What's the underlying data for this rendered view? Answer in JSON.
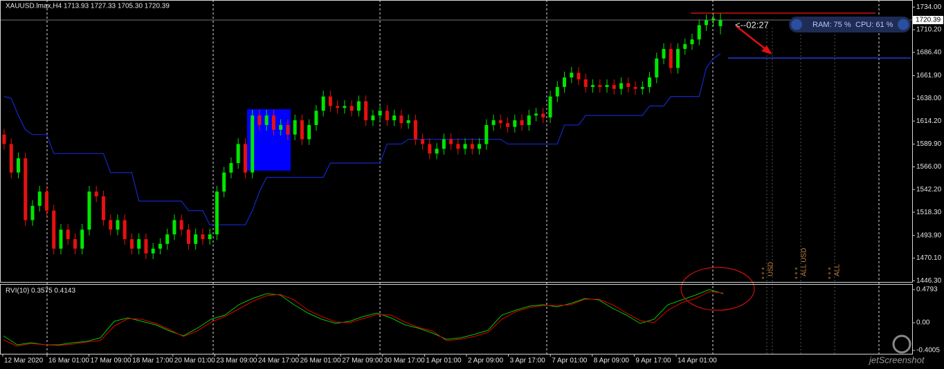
{
  "header": {
    "symbol": "XAUUSD.lmax,H4",
    "ohlc": "1713.93 1727.33 1705.30 1720.39",
    "timer": "<--02:27",
    "ram": "RAM: 75 %",
    "cpu": "CPU: 61 %",
    "watermark": "jetScreenshot"
  },
  "events": [
    {
      "stars": "* * *",
      "label": "USD"
    },
    {
      "stars": "* * *",
      "label": "ALL USD"
    },
    {
      "stars": "* * *",
      "label": "ALL"
    }
  ],
  "time_labels": [
    "12 Mar 2020",
    "16 Mar 01:00",
    "17 Mar 09:00",
    "18 Mar 17:00",
    "20 Mar 01:00",
    "23 Mar 09:00",
    "24 Mar 17:00",
    "26 Mar 01:00",
    "27 Mar 09:00",
    "30 Mar 17:00",
    "1 Apr 01:00",
    "2 Apr 09:00",
    "3 Apr 17:00",
    "7 Apr 01:00",
    "8 Apr 09:00",
    "9 Apr 17:00",
    "14 Apr 01:00"
  ],
  "chart_data": [
    {
      "type": "candlestick",
      "up_color": "#00e600",
      "down_color": "#e81010",
      "ylim": [
        1445,
        1740
      ],
      "yticks": [
        {
          "value": 1734,
          "label": "1734.00"
        },
        {
          "value": 1710.2,
          "label": "1710.20"
        },
        {
          "value": 1686.4,
          "label": "1686.40"
        },
        {
          "value": 1661.9,
          "label": "1661.90"
        },
        {
          "value": 1638,
          "label": "1638.00"
        },
        {
          "value": 1614.2,
          "label": "1614.20"
        },
        {
          "value": 1589.9,
          "label": "1589.90"
        },
        {
          "value": 1566,
          "label": "1566.00"
        },
        {
          "value": 1542.2,
          "label": "1542.20"
        },
        {
          "value": 1518.3,
          "label": "1518.30"
        },
        {
          "value": 1493.9,
          "label": "1493.90"
        },
        {
          "value": 1470.1,
          "label": "1470.10"
        },
        {
          "value": 1446.3,
          "label": "1446.30"
        }
      ],
      "open": [
        1600,
        1590,
        1560,
        1575,
        1510,
        1525,
        1540,
        1520,
        1480,
        1500,
        1490,
        1480,
        1500,
        1540,
        1535,
        1510,
        1500,
        1510,
        1490,
        1480,
        1490,
        1475,
        1480,
        1485,
        1495,
        1510,
        1500,
        1485,
        1495,
        1490,
        1495,
        1540,
        1560,
        1570,
        1590,
        1560,
        1620,
        1610,
        1620,
        1605,
        1610,
        1600,
        1615,
        1595,
        1610,
        1625,
        1640,
        1630,
        1628,
        1630,
        1625,
        1635,
        1615,
        1620,
        1625,
        1615,
        1620,
        1612,
        1615,
        1595,
        1590,
        1580,
        1585,
        1595,
        1590,
        1585,
        1590,
        1585,
        1590,
        1610,
        1615,
        1612,
        1608,
        1615,
        1610,
        1620,
        1622,
        1618,
        1640,
        1650,
        1660,
        1665,
        1658,
        1650,
        1652,
        1650,
        1652,
        1648,
        1654,
        1650,
        1648,
        1650,
        1660,
        1680,
        1690,
        1670,
        1690,
        1695,
        1700,
        1715,
        1720,
        1713.93
      ],
      "high": [
        1606,
        1596,
        1581,
        1581,
        1531,
        1546,
        1546,
        1526,
        1506,
        1506,
        1496,
        1506,
        1546,
        1546,
        1541,
        1516,
        1516,
        1516,
        1496,
        1496,
        1496,
        1486,
        1491,
        1501,
        1516,
        1516,
        1506,
        1501,
        1501,
        1501,
        1546,
        1566,
        1576,
        1596,
        1596,
        1626,
        1626,
        1626,
        1626,
        1616,
        1616,
        1621,
        1621,
        1616,
        1631,
        1646,
        1646,
        1636,
        1636,
        1636,
        1641,
        1641,
        1626,
        1631,
        1631,
        1626,
        1626,
        1621,
        1621,
        1601,
        1596,
        1591,
        1601,
        1601,
        1596,
        1596,
        1596,
        1596,
        1616,
        1621,
        1621,
        1618,
        1621,
        1621,
        1626,
        1628,
        1628,
        1646,
        1656,
        1666,
        1671,
        1671,
        1664,
        1658,
        1658,
        1658,
        1658,
        1660,
        1660,
        1656,
        1656,
        1666,
        1686,
        1696,
        1696,
        1696,
        1701,
        1706,
        1721,
        1726,
        1728,
        1727.33
      ],
      "low": [
        1584,
        1554,
        1554,
        1504,
        1504,
        1519,
        1514,
        1474,
        1474,
        1484,
        1474,
        1474,
        1494,
        1529,
        1504,
        1494,
        1494,
        1484,
        1474,
        1474,
        1469,
        1469,
        1474,
        1479,
        1489,
        1494,
        1479,
        1479,
        1484,
        1484,
        1489,
        1534,
        1554,
        1564,
        1554,
        1554,
        1604,
        1604,
        1599,
        1599,
        1594,
        1594,
        1589,
        1589,
        1604,
        1619,
        1624,
        1622,
        1622,
        1619,
        1619,
        1609,
        1609,
        1614,
        1609,
        1609,
        1606,
        1606,
        1589,
        1584,
        1574,
        1574,
        1579,
        1584,
        1579,
        1579,
        1579,
        1579,
        1584,
        1604,
        1606,
        1602,
        1602,
        1604,
        1604,
        1614,
        1612,
        1612,
        1634,
        1644,
        1654,
        1652,
        1644,
        1644,
        1644,
        1644,
        1642,
        1642,
        1644,
        1642,
        1642,
        1644,
        1654,
        1674,
        1664,
        1664,
        1684,
        1689,
        1694,
        1709,
        1714,
        1705.3
      ],
      "close": [
        1590,
        1560,
        1575,
        1510,
        1525,
        1540,
        1520,
        1480,
        1500,
        1490,
        1480,
        1500,
        1540,
        1535,
        1510,
        1500,
        1510,
        1490,
        1480,
        1490,
        1475,
        1480,
        1485,
        1495,
        1510,
        1500,
        1485,
        1495,
        1490,
        1495,
        1540,
        1560,
        1570,
        1590,
        1560,
        1620,
        1610,
        1620,
        1605,
        1610,
        1600,
        1615,
        1595,
        1610,
        1625,
        1640,
        1630,
        1628,
        1630,
        1625,
        1635,
        1615,
        1620,
        1625,
        1615,
        1620,
        1612,
        1615,
        1595,
        1590,
        1580,
        1585,
        1595,
        1590,
        1585,
        1590,
        1585,
        1590,
        1610,
        1615,
        1612,
        1608,
        1615,
        1610,
        1620,
        1622,
        1618,
        1640,
        1650,
        1660,
        1665,
        1658,
        1650,
        1652,
        1650,
        1652,
        1648,
        1654,
        1650,
        1648,
        1650,
        1660,
        1680,
        1690,
        1670,
        1690,
        1695,
        1700,
        1715,
        1720,
        1722,
        1720.39
      ],
      "indicator": {
        "color": "#1428c8",
        "values": [
          1640,
          1638,
          1620,
          1605,
          1600,
          1600,
          1600,
          1580,
          1580,
          1580,
          1580,
          1580,
          1580,
          1580,
          1580,
          1560,
          1560,
          1560,
          1560,
          1530,
          1530,
          1530,
          1530,
          1530,
          1530,
          1530,
          1520,
          1520,
          1520,
          1505,
          1505,
          1505,
          1505,
          1505,
          1505,
          1520,
          1540,
          1555,
          1555,
          1555,
          1555,
          1555,
          1555,
          1555,
          1555,
          1555,
          1570,
          1570,
          1570,
          1570,
          1570,
          1570,
          1570,
          1570,
          1590,
          1590,
          1590,
          1595,
          1595,
          1595,
          1595,
          1595,
          1595,
          1595,
          1595,
          1595,
          1595,
          1595,
          1595,
          1595,
          1595,
          1590,
          1590,
          1590,
          1590,
          1590,
          1590,
          1590,
          1590,
          1610,
          1610,
          1610,
          1620,
          1620,
          1620,
          1620,
          1620,
          1620,
          1620,
          1620,
          1620,
          1630,
          1630,
          1630,
          1640,
          1640,
          1640,
          1640,
          1640,
          1670,
          1680,
          1685
        ]
      }
    },
    {
      "type": "line",
      "title": "RVI(10) 0.3575 0.4143",
      "ylim": [
        -0.45,
        0.55
      ],
      "yticks": [
        0.4793,
        {
          "value": 0,
          "label": "0.00"
        },
        -0.4005
      ],
      "series": [
        {
          "color": "#00c800",
          "values": [
            -0.19,
            -0.32,
            -0.29,
            -0.32,
            -0.32,
            -0.29,
            -0.27,
            -0.22,
            0.02,
            0.07,
            0.02,
            -0.03,
            -0.12,
            -0.19,
            -0.08,
            0.05,
            0.11,
            0.26,
            0.35,
            0.42,
            0.4,
            0.26,
            0.14,
            0.05,
            -0.01,
            0.02,
            0.09,
            0.14,
            0.07,
            -0.03,
            -0.08,
            -0.15,
            -0.24,
            -0.22,
            -0.17,
            -0.11,
            0.11,
            0.18,
            0.24,
            0.26,
            0.23,
            0.28,
            0.35,
            0.33,
            0.21,
            0.11,
            -0.01,
            0.05,
            0.26,
            0.33,
            0.4,
            0.48,
            0.42
          ]
        },
        {
          "color": "#e00000",
          "values": [
            -0.25,
            -0.34,
            -0.3,
            -0.32,
            -0.33,
            -0.31,
            -0.28,
            -0.26,
            -0.05,
            0.06,
            0.05,
            -0.01,
            -0.1,
            -0.2,
            -0.12,
            0.01,
            0.09,
            0.2,
            0.31,
            0.39,
            0.41,
            0.33,
            0.18,
            0.09,
            0.01,
            0,
            0.06,
            0.12,
            0.11,
            0.01,
            -0.07,
            -0.12,
            -0.26,
            -0.24,
            -0.2,
            -0.14,
            0.05,
            0.16,
            0.22,
            0.25,
            0.25,
            0.26,
            0.34,
            0.34,
            0.26,
            0.14,
            0.03,
            0,
            0.18,
            0.29,
            0.35,
            0.45,
            0.43
          ]
        }
      ]
    }
  ]
}
